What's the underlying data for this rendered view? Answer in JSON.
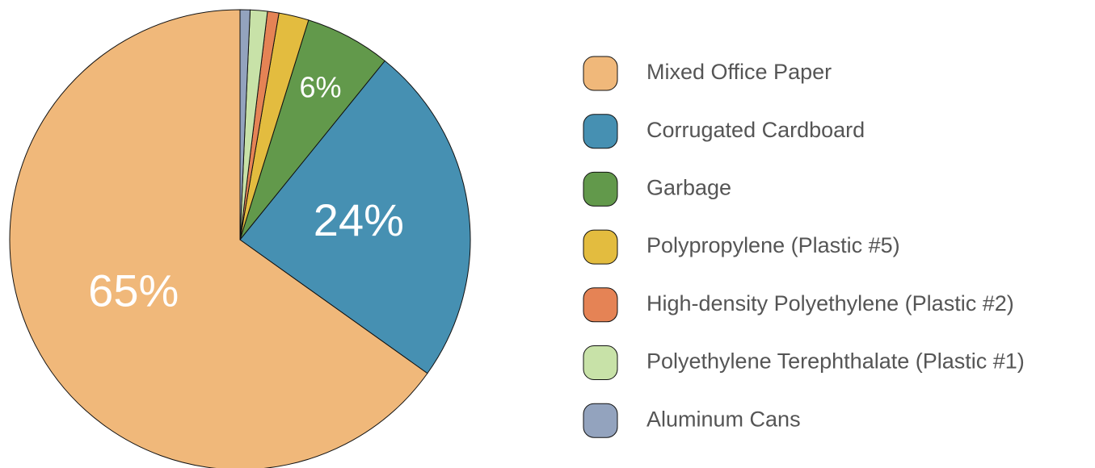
{
  "chart_data": {
    "type": "pie",
    "categories": [
      "Mixed Office Paper",
      "Corrugated Cardboard",
      "Garbage",
      "Polypropylene (Plastic #5)",
      "High-density Polyethylene (Plastic #2)",
      "Polyethylene Terephthalate (Plastic #1)",
      "Aluminum Cans"
    ],
    "values": [
      65,
      24,
      6,
      2.1,
      0.8,
      1.2,
      0.7
    ],
    "value_labels": [
      "65%",
      "24%",
      "6%",
      null,
      null,
      null,
      null
    ],
    "colors": [
      "#f0b87a",
      "#4690b2",
      "#62994b",
      "#e3bc3f",
      "#e58355",
      "#c8e2a8",
      "#93a3be"
    ],
    "legend": "right"
  }
}
